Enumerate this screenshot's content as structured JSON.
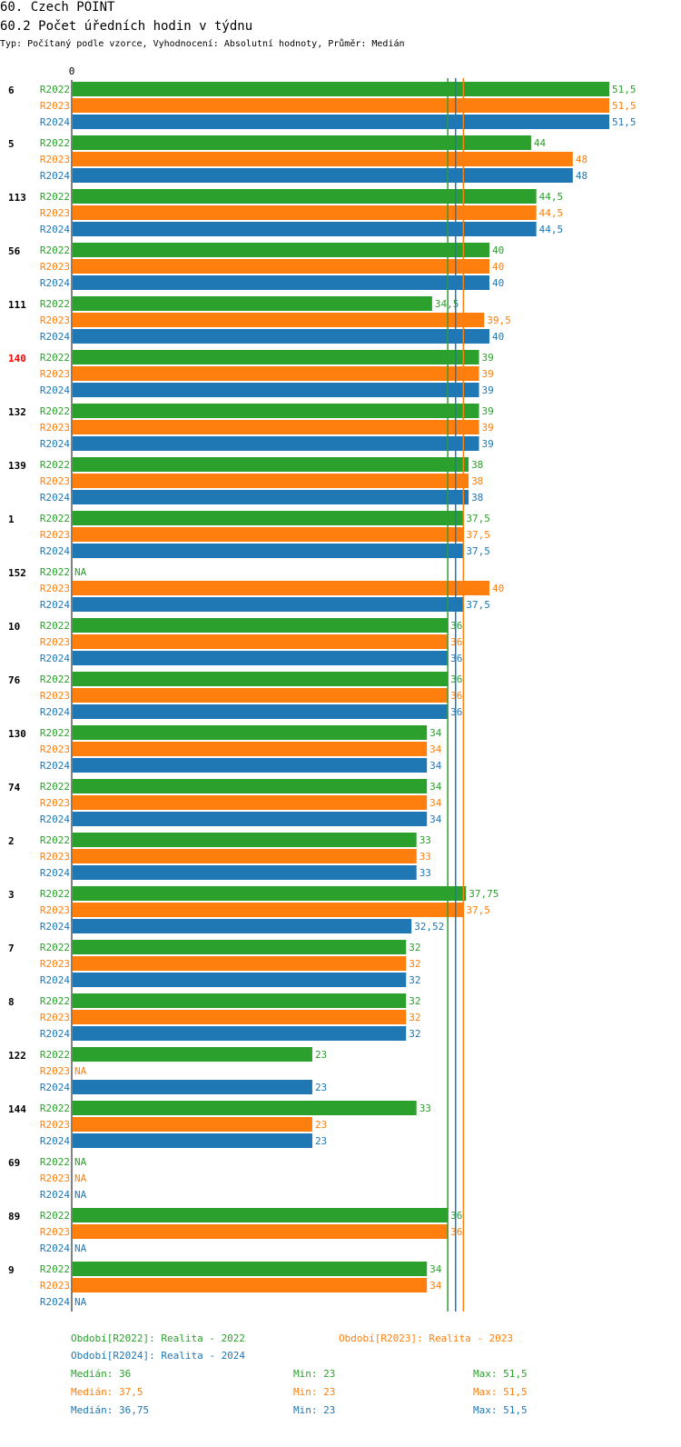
{
  "header": {
    "title": "60. Czech POINT",
    "subtitle": "60.2 Počet úředních hodin v týdnu",
    "info": "Typ: Počítaný podle vzorce, Vyhodnocení: Absolutní hodnoty, Průměr: Medián"
  },
  "colors": {
    "R2022": "#2ca02c",
    "R2023": "#ff7f0e",
    "R2024": "#1f77b4",
    "highlight": "#ff0000"
  },
  "chart_data": {
    "type": "bar",
    "orientation": "horizontal",
    "axis_zero_label": "0",
    "xlim": [
      0,
      51.5
    ],
    "series_names": [
      "R2022",
      "R2023",
      "R2024"
    ],
    "categories": [
      "6",
      "5",
      "113",
      "56",
      "111",
      "140",
      "132",
      "139",
      "1",
      "152",
      "10",
      "76",
      "130",
      "74",
      "2",
      "3",
      "7",
      "8",
      "122",
      "144",
      "69",
      "89",
      "9"
    ],
    "highlighted_category": "140",
    "values": {
      "R2022": [
        51.5,
        44,
        44.5,
        40,
        34.5,
        39,
        39,
        38,
        37.5,
        null,
        36,
        36,
        34,
        34,
        33,
        37.75,
        32,
        32,
        23,
        33,
        null,
        36,
        34
      ],
      "R2023": [
        51.5,
        48,
        44.5,
        40,
        39.5,
        39,
        39,
        38,
        37.5,
        40,
        36,
        36,
        34,
        34,
        33,
        37.5,
        32,
        32,
        null,
        23,
        null,
        36,
        34
      ],
      "R2024": [
        51.5,
        48,
        44.5,
        40,
        40,
        39,
        39,
        38,
        37.5,
        37.5,
        36,
        36,
        34,
        34,
        33,
        32.52,
        32,
        32,
        23,
        23,
        null,
        null,
        null
      ]
    },
    "value_labels": {
      "R2022": [
        "51,5",
        "44",
        "44,5",
        "40",
        "34,5",
        "39",
        "39",
        "38",
        "37,5",
        "NA",
        "36",
        "36",
        "34",
        "34",
        "33",
        "37,75",
        "32",
        "32",
        "23",
        "33",
        "NA",
        "36",
        "34"
      ],
      "R2023": [
        "51,5",
        "48",
        "44,5",
        "40",
        "39,5",
        "39",
        "39",
        "38",
        "37,5",
        "40",
        "36",
        "36",
        "34",
        "34",
        "33",
        "37,5",
        "32",
        "32",
        "NA",
        "23",
        "NA",
        "36",
        "34"
      ],
      "R2024": [
        "51,5",
        "48",
        "44,5",
        "40",
        "40",
        "39",
        "39",
        "38",
        "37,5",
        "37,5",
        "36",
        "36",
        "34",
        "34",
        "33",
        "32,52",
        "32",
        "32",
        "23",
        "23",
        "NA",
        "NA",
        "NA"
      ]
    },
    "reference_lines": [
      {
        "series": "R2022",
        "value": 36
      },
      {
        "series": "R2024",
        "value": 36.75
      },
      {
        "series": "R2023",
        "value": 37.5
      }
    ]
  },
  "legend": {
    "r2022": "Období[R2022]: Realita - 2022",
    "r2023": "Období[R2023]: Realita - 2023",
    "r2024": "Období[R2024]: Realita - 2024"
  },
  "stats": [
    {
      "series": "R2022",
      "median": "Medián: 36",
      "min": "Min: 23",
      "max": "Max: 51,5"
    },
    {
      "series": "R2023",
      "median": "Medián: 37,5",
      "min": "Min: 23",
      "max": "Max: 51,5"
    },
    {
      "series": "R2024",
      "median": "Medián: 36,75",
      "min": "Min: 23",
      "max": "Max: 51,5"
    }
  ]
}
